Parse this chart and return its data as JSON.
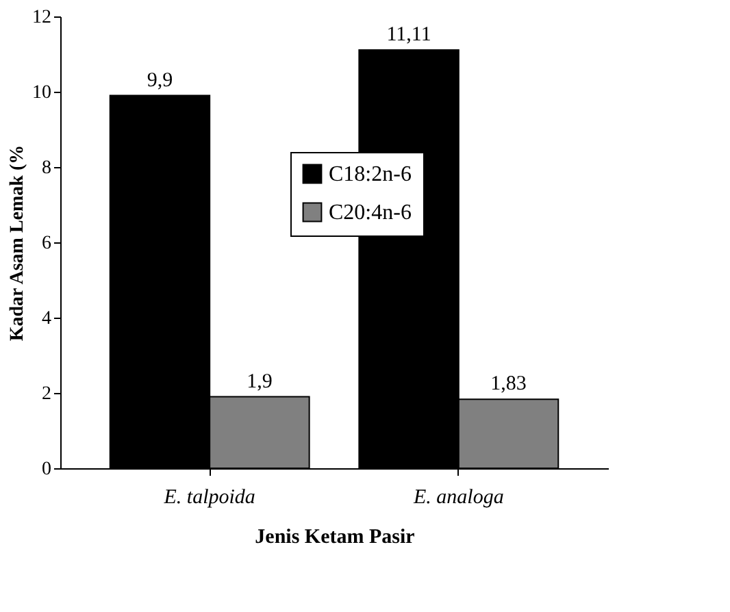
{
  "chart_data": {
    "type": "bar",
    "xlabel": "Jenis Ketam Pasir",
    "ylabel": "Kadar Asam Lemak (%",
    "categories": [
      "E. talpoida",
      "E. analoga"
    ],
    "series": [
      {
        "name": "C18:2n-6",
        "color": "#000000",
        "values": [
          9.9,
          11.11
        ],
        "value_labels": [
          "9,9",
          "11,11"
        ]
      },
      {
        "name": "C20:4n-6",
        "color": "#808080",
        "values": [
          1.9,
          1.83
        ],
        "value_labels": [
          "1,9",
          "1,83"
        ]
      }
    ],
    "ylim": [
      0,
      12
    ],
    "yticks": [
      0,
      2,
      4,
      6,
      8,
      10,
      12
    ],
    "grid": false,
    "legend": "center"
  }
}
